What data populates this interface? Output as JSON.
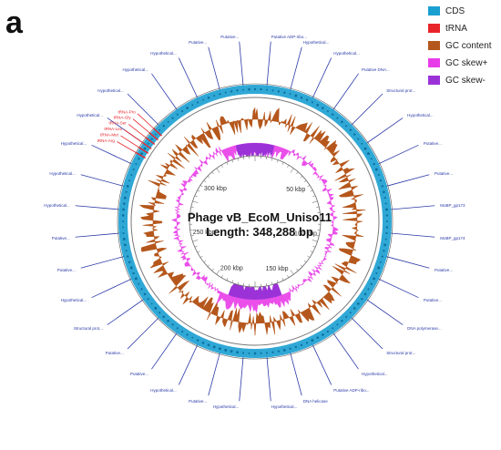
{
  "panel_letter": "a",
  "legend": [
    {
      "label": "CDS",
      "color": "#1a9fd1"
    },
    {
      "label": "tRNA",
      "color": "#e8242b"
    },
    {
      "label": "GC content",
      "color": "#b5571c"
    },
    {
      "label": "GC skew+",
      "color": "#e83ce8"
    },
    {
      "label": "GC skew-",
      "color": "#9b32d8"
    }
  ],
  "map_title": "Phage vB_EcoM_Uniso11",
  "map_length": "Length: 348,288 bp",
  "scale_ticks": [
    "50 kbp",
    "100 kbp",
    "150 kbp",
    "200 kbp",
    "250 kbp",
    "300 kbp"
  ],
  "gene_labels": [
    "Putative ADP-ribo...",
    "Hypothetical...",
    "Hypothetical...",
    "Putative DNA...",
    "Structural prot...",
    "Hypothetical...",
    "Putative...",
    "Putative...",
    "MoBP_gp173",
    "MoBP_gp174",
    "Putative...",
    "Putative...",
    "DNA polymerase...",
    "Structural prot...",
    "Hypothetical...",
    "Putative ADP-ribo...",
    "DNA helicase",
    "Hypothetical...",
    "Hypothetical...",
    "Putative...",
    "Hypothetical...",
    "Putative...",
    "Putative...",
    "Structural prot...",
    "Hypothetical...",
    "Putative...",
    "Putative...",
    "Hypothetical...",
    "Hypothetical...",
    "Hypothetical...",
    "Hypothetical...",
    "Hypothetical...",
    "Hypothetical...",
    "Hypothetical...",
    "Putative...",
    "Putative..."
  ],
  "trna_labels": [
    "tRNA-Arg",
    "tRNA-Met",
    "tRNA-Leu",
    "tRNA-Ser",
    "tRNA-Gly",
    "tRNA-Pro"
  ]
}
